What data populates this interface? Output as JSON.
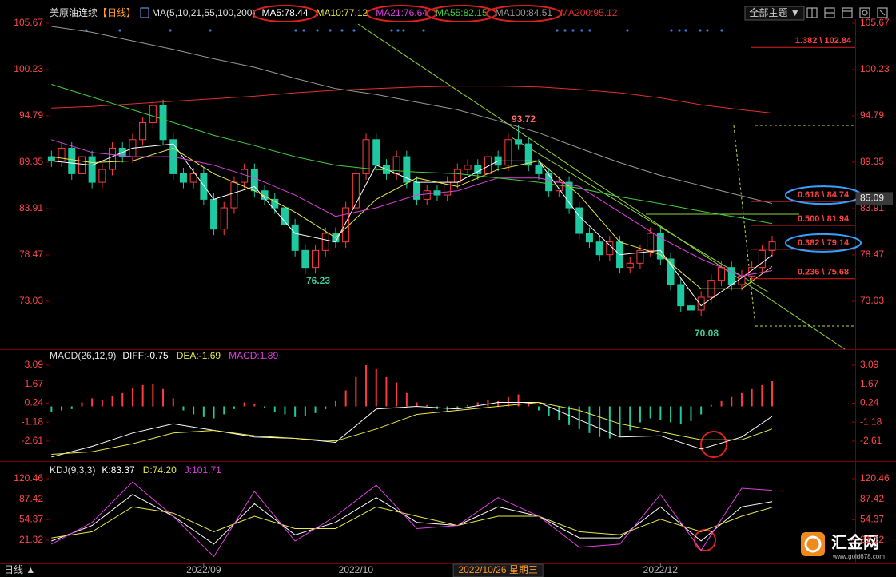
{
  "header": {
    "instrument": "美原油连续",
    "period": "【日线】",
    "toolbar_theme": "全部主题 ▼"
  },
  "footer": {
    "period_toggle": "日线 ▲",
    "logo": "汇金网",
    "logo_url": "www.gold678.com"
  },
  "chart_data": [
    {
      "type": "candlestick",
      "title": "MA(5,10,21,55,100,200)",
      "up_color": "#ff3c3c",
      "down_color": "#1ec8a0",
      "ylim": [
        67.4,
        106.33
      ],
      "yticks": [
        105.67,
        100.23,
        94.79,
        89.35,
        83.91,
        78.47,
        73.03
      ],
      "xticks": [
        {
          "value": 15,
          "label": "2022/09"
        },
        {
          "value": 30,
          "label": "2022/10"
        },
        {
          "value": 60,
          "label": "2022/12"
        }
      ],
      "cursor": {
        "value": 44,
        "label": "2022/10/26 星期三"
      },
      "price_marker": 85.09,
      "annotations": [
        "93.72",
        "76.23",
        "70.08"
      ],
      "fib_levels": [
        {
          "label": "1.382 \\ 102.84",
          "value": 102.84
        },
        {
          "label": "0.618 \\ 84.74",
          "value": 84.74
        },
        {
          "label": "0.500 \\ 81.94",
          "value": 81.94
        },
        {
          "label": "0.382 \\ 79.14",
          "value": 79.14
        },
        {
          "label": "0.236 \\ 75.68",
          "value": 75.68
        }
      ],
      "candles": [
        [
          90,
          90.7,
          88.8,
          89.5
        ],
        [
          89.5,
          91.7,
          88.8,
          91
        ],
        [
          91,
          91.7,
          87.3,
          88
        ],
        [
          88,
          90.7,
          87.3,
          90
        ],
        [
          90,
          90.7,
          86.3,
          87
        ],
        [
          87,
          89.2,
          86.3,
          88.5
        ],
        [
          88.5,
          91.7,
          87.8,
          91
        ],
        [
          91,
          91.7,
          89.3,
          90
        ],
        [
          90,
          92.7,
          89.3,
          92
        ],
        [
          92,
          94.7,
          91.3,
          94
        ],
        [
          94,
          96.7,
          93.3,
          96
        ],
        [
          96,
          96.7,
          91.3,
          92
        ],
        [
          92,
          92.7,
          87.3,
          88
        ],
        [
          88,
          88.7,
          86.3,
          87
        ],
        [
          87,
          88.7,
          86.3,
          88
        ],
        [
          88,
          88.7,
          84.3,
          85
        ],
        [
          85,
          85.7,
          80.8,
          81.5
        ],
        [
          81.5,
          84.7,
          80.8,
          84
        ],
        [
          84,
          87.7,
          83.3,
          87
        ],
        [
          87,
          89.2,
          86.3,
          88.5
        ],
        [
          88.5,
          89.2,
          85.3,
          86
        ],
        [
          86,
          86.7,
          84.3,
          85
        ],
        [
          85,
          85.7,
          83.3,
          84
        ],
        [
          84,
          84.7,
          81.3,
          82
        ],
        [
          82,
          82.7,
          78.3,
          79
        ],
        [
          79,
          79.7,
          76.23,
          77
        ],
        [
          77,
          79.7,
          76.3,
          79
        ],
        [
          79,
          81.7,
          78.3,
          81
        ],
        [
          81,
          81.7,
          79.3,
          80
        ],
        [
          80,
          84.7,
          79.3,
          84
        ],
        [
          84,
          88.7,
          83.3,
          88
        ],
        [
          88,
          92.7,
          87.3,
          92
        ],
        [
          92,
          92.7,
          88.3,
          89
        ],
        [
          89,
          89.7,
          87.3,
          88
        ],
        [
          88,
          90.7,
          87.3,
          90
        ],
        [
          90,
          90.7,
          86.3,
          87
        ],
        [
          87,
          87.7,
          84.3,
          85
        ],
        [
          85,
          86.7,
          84.3,
          86
        ],
        [
          86,
          86.7,
          84.8,
          85.5
        ],
        [
          85.5,
          87.7,
          84.8,
          87
        ],
        [
          87,
          89.2,
          86.3,
          88.5
        ],
        [
          88.5,
          89.7,
          87.8,
          89
        ],
        [
          89,
          89.7,
          87.3,
          88
        ],
        [
          88,
          90.7,
          87.3,
          90
        ],
        [
          90,
          90.7,
          88.3,
          89
        ],
        [
          89,
          92.7,
          88.3,
          92
        ],
        [
          92,
          93.72,
          90.8,
          91.5
        ],
        [
          91.5,
          92.2,
          88.3,
          89
        ],
        [
          89,
          89.7,
          87.3,
          88
        ],
        [
          88,
          88.7,
          85.3,
          86
        ],
        [
          86,
          87.7,
          85.3,
          87
        ],
        [
          87,
          87.7,
          83.3,
          84
        ],
        [
          84,
          84.7,
          80.3,
          81
        ],
        [
          81,
          81.7,
          79.3,
          80
        ],
        [
          80,
          80.7,
          77.8,
          78.5
        ],
        [
          78.5,
          80.7,
          77.8,
          80
        ],
        [
          80,
          80.7,
          76.3,
          77
        ],
        [
          77,
          78.2,
          76.3,
          77.5
        ],
        [
          77.5,
          79.7,
          76.8,
          79
        ],
        [
          79,
          81.7,
          78.3,
          81
        ],
        [
          81,
          81.7,
          77.3,
          78
        ],
        [
          78,
          78.7,
          74.3,
          75
        ],
        [
          75,
          75.7,
          71.8,
          72.5
        ],
        [
          72.5,
          73.2,
          70.08,
          72
        ],
        [
          72,
          74.2,
          71.3,
          73.5
        ],
        [
          73.5,
          76.2,
          72.8,
          75.5
        ],
        [
          75.5,
          77.7,
          74.8,
          77
        ],
        [
          77,
          77.7,
          74.3,
          75
        ],
        [
          75,
          76.7,
          74.3,
          76
        ],
        [
          76,
          77.7,
          75.3,
          77
        ],
        [
          77,
          79.7,
          76.3,
          79
        ],
        [
          79,
          80.7,
          78.3,
          80
        ]
      ],
      "series": [
        {
          "name": "MA5:78.44",
          "color": "#ffffff",
          "x": [
            0,
            4,
            8,
            12,
            16,
            20,
            24,
            28,
            32,
            36,
            40,
            44,
            48,
            52,
            56,
            60,
            64,
            68,
            71
          ],
          "values": [
            89.5,
            89,
            91,
            91.5,
            85,
            86.5,
            81,
            80,
            89,
            87,
            87,
            89.5,
            89.5,
            83,
            78.5,
            79,
            72.5,
            75.8,
            78.44
          ]
        },
        {
          "name": "MA10:77.12",
          "color": "#e8e84a",
          "x": [
            0,
            4,
            8,
            12,
            16,
            20,
            24,
            28,
            32,
            36,
            40,
            44,
            48,
            52,
            56,
            60,
            64,
            68,
            71
          ],
          "values": [
            90,
            89.3,
            89.5,
            91,
            88,
            86,
            83.5,
            80.5,
            85,
            87.5,
            86.5,
            88.5,
            89.5,
            85.5,
            80,
            78.5,
            74.5,
            74.5,
            77.12
          ]
        },
        {
          "name": "MA21:76.64",
          "color": "#e040e0",
          "x": [
            0,
            4,
            8,
            12,
            16,
            20,
            24,
            28,
            32,
            36,
            40,
            44,
            48,
            52,
            56,
            60,
            64,
            68,
            71
          ],
          "values": [
            92,
            90.5,
            90,
            90,
            89,
            87.5,
            85.5,
            83,
            84,
            85.5,
            86,
            87.5,
            87.5,
            86.5,
            83.5,
            80.5,
            78,
            76,
            76.64
          ]
        },
        {
          "name": "MA55:82.15",
          "color": "#40d040",
          "x": [
            0,
            4,
            8,
            12,
            16,
            20,
            24,
            28,
            32,
            36,
            40,
            44,
            48,
            52,
            56,
            60,
            64,
            68,
            71
          ],
          "values": [
            98.5,
            97,
            95.5,
            94,
            92.5,
            91.3,
            90,
            89,
            88.5,
            88.2,
            88,
            87.5,
            87,
            86.3,
            85.3,
            84.5,
            83.6,
            82.8,
            82.15
          ]
        },
        {
          "name": "MA100:84.51",
          "color": "#9a9a9a",
          "x": [
            0,
            4,
            8,
            12,
            16,
            20,
            24,
            28,
            32,
            36,
            40,
            44,
            48,
            52,
            56,
            60,
            64,
            68,
            71
          ],
          "values": [
            105.3,
            104.6,
            103.6,
            102.6,
            101.5,
            100.5,
            99.2,
            98,
            97.3,
            96.4,
            95.5,
            94.2,
            92.8,
            91,
            89.3,
            87.8,
            86.6,
            85.4,
            84.51
          ]
        },
        {
          "name": "MA200:95.12",
          "color": "#e03030",
          "x": [
            0,
            4,
            8,
            12,
            16,
            20,
            24,
            28,
            32,
            36,
            40,
            44,
            48,
            52,
            56,
            60,
            64,
            68,
            71
          ],
          "values": [
            95.7,
            95.9,
            96.2,
            96.5,
            96.8,
            97.1,
            97.5,
            97.8,
            98,
            98.2,
            98.3,
            98.3,
            98.2,
            97.9,
            97.5,
            96.9,
            96.1,
            95.5,
            95.12
          ]
        }
      ]
    },
    {
      "type": "macd",
      "title": "MACD(26,12,9)",
      "ylim": [
        -3.99,
        4.11
      ],
      "yticks": [
        3.09,
        1.67,
        0.24,
        -1.18,
        -2.61
      ],
      "histogram": {
        "name": "MACD:1.89",
        "color": "#e040e0",
        "up_color": "#ff3c3c",
        "down_color": "#1ec8a0",
        "values": [
          -0.4,
          -0.3,
          -0.2,
          0.3,
          0.6,
          0.5,
          0.8,
          1.0,
          1.4,
          1.6,
          1.7,
          1.3,
          0.6,
          -0.3,
          -0.6,
          -0.8,
          -0.9,
          -0.6,
          -0.2,
          0.3,
          0.2,
          -0.1,
          -0.4,
          -0.6,
          -0.8,
          -0.7,
          -0.5,
          -0.2,
          0.4,
          1.2,
          2.2,
          3.09,
          2.8,
          2.2,
          1.8,
          1.0,
          0.3,
          0.1,
          -0.2,
          -0.4,
          -0.2,
          0.1,
          0.3,
          0.5,
          0.4,
          0.7,
          0.9,
          0.3,
          -0.3,
          -0.7,
          -1.0,
          -1.4,
          -1.7,
          -2.0,
          -2.3,
          -2.4,
          -2.2,
          -1.8,
          -1.2,
          -0.9,
          -1.0,
          -1.2,
          -1.3,
          -1.1,
          -0.6,
          0.1,
          0.4,
          0.7,
          1.0,
          1.3,
          1.6,
          1.89
        ]
      },
      "series": [
        {
          "name": "DIFF:-0.75",
          "color": "#ffffff",
          "x": [
            0,
            4,
            8,
            12,
            16,
            20,
            24,
            28,
            32,
            36,
            40,
            44,
            48,
            52,
            56,
            60,
            64,
            68,
            71
          ],
          "values": [
            -3.8,
            -3.0,
            -2.0,
            -1.3,
            -1.8,
            -2.3,
            -2.4,
            -2.7,
            -0.2,
            0.0,
            -0.2,
            0.3,
            0.3,
            -1.0,
            -2.3,
            -2.2,
            -3.2,
            -2.3,
            -0.75
          ]
        },
        {
          "name": "DEA:-1.69",
          "color": "#e8e84a",
          "x": [
            0,
            4,
            8,
            12,
            16,
            20,
            24,
            28,
            32,
            36,
            40,
            44,
            48,
            52,
            56,
            60,
            64,
            68,
            71
          ],
          "values": [
            -3.6,
            -3.4,
            -2.8,
            -2.0,
            -1.8,
            -2.2,
            -2.4,
            -2.6,
            -1.7,
            -0.6,
            -0.3,
            0.0,
            0.3,
            -0.3,
            -1.3,
            -1.9,
            -2.5,
            -2.5,
            -1.69
          ]
        }
      ]
    },
    {
      "type": "kdj",
      "title": "KDJ(9,3,3)",
      "ylim": [
        -16.0,
        144.9
      ],
      "yticks": [
        120.46,
        87.42,
        54.37,
        21.32
      ],
      "series": [
        {
          "name": "K:83.37",
          "color": "#ffffff",
          "x": [
            0,
            4,
            8,
            12,
            16,
            20,
            24,
            28,
            32,
            36,
            40,
            44,
            48,
            52,
            56,
            60,
            64,
            68,
            71
          ],
          "values": [
            20,
            45,
            95,
            60,
            15,
            80,
            30,
            50,
            90,
            50,
            45,
            75,
            60,
            25,
            25,
            75,
            20,
            75,
            83.37
          ]
        },
        {
          "name": "D:74.20",
          "color": "#e8e84a",
          "x": [
            0,
            4,
            8,
            12,
            16,
            20,
            24,
            28,
            32,
            36,
            40,
            44,
            48,
            52,
            56,
            60,
            64,
            68,
            71
          ],
          "values": [
            25,
            35,
            75,
            65,
            35,
            60,
            40,
            40,
            75,
            60,
            45,
            60,
            60,
            35,
            30,
            55,
            35,
            60,
            74.2
          ]
        },
        {
          "name": "J:101.71",
          "color": "#e040e0",
          "x": [
            0,
            4,
            8,
            12,
            16,
            20,
            24,
            28,
            32,
            36,
            40,
            44,
            48,
            52,
            56,
            60,
            64,
            68,
            71
          ],
          "values": [
            15,
            50,
            115,
            60,
            -5,
            100,
            20,
            60,
            110,
            40,
            45,
            90,
            60,
            10,
            15,
            95,
            5,
            105,
            101.71
          ]
        }
      ]
    }
  ]
}
